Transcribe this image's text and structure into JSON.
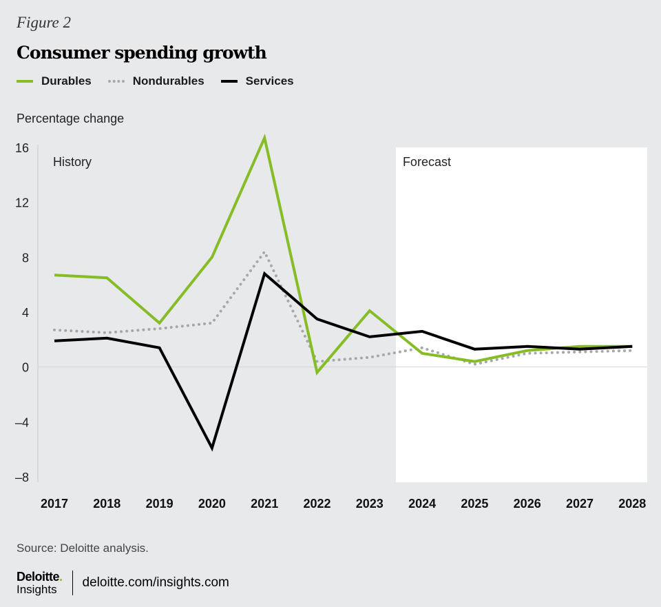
{
  "figure_label": "Figure 2",
  "footer": {
    "source": "Source: Deloitte analysis.",
    "brand_name": "Deloitte",
    "brand_dot": ".",
    "brand_sub": "Insights",
    "url": "deloitte.com/insights.com"
  },
  "colors": {
    "background": "#e8e9eb",
    "forecast_panel": "#ffffff",
    "durables": "#86bc25",
    "nondurables": "#a7a8aa",
    "services": "#000000"
  },
  "chart_data": {
    "type": "line",
    "title": "Consumer spending growth",
    "ylabel": "Percentage change",
    "xlabel": "",
    "x": [
      "2017",
      "2018",
      "2019",
      "2020",
      "2021",
      "2022",
      "2023",
      "2024",
      "2025",
      "2026",
      "2027",
      "2028"
    ],
    "ylim": [
      -8,
      16
    ],
    "yticks": [
      16,
      12,
      8,
      4,
      0,
      -4,
      -8
    ],
    "ytick_labels": [
      "16",
      "12",
      "8",
      "4",
      "0",
      "–4",
      "–8"
    ],
    "grid": false,
    "zero_line": true,
    "legend_position": "top-left",
    "regions": [
      {
        "label": "History",
        "from": "2017",
        "to": "2023"
      },
      {
        "label": "Forecast",
        "from": "2024",
        "to": "2028"
      }
    ],
    "series": [
      {
        "name": "Durables",
        "style": "solid",
        "values": [
          6.7,
          6.5,
          3.2,
          8.0,
          16.7,
          -0.4,
          4.1,
          1.0,
          0.4,
          1.2,
          1.5,
          1.5
        ]
      },
      {
        "name": "Nondurables",
        "style": "dotted",
        "values": [
          2.7,
          2.5,
          2.8,
          3.2,
          8.4,
          0.4,
          0.7,
          1.4,
          0.2,
          1.0,
          1.1,
          1.2
        ]
      },
      {
        "name": "Services",
        "style": "solid",
        "values": [
          1.9,
          2.1,
          1.4,
          -5.9,
          6.8,
          3.5,
          2.2,
          2.6,
          1.3,
          1.5,
          1.3,
          1.5
        ]
      }
    ]
  }
}
